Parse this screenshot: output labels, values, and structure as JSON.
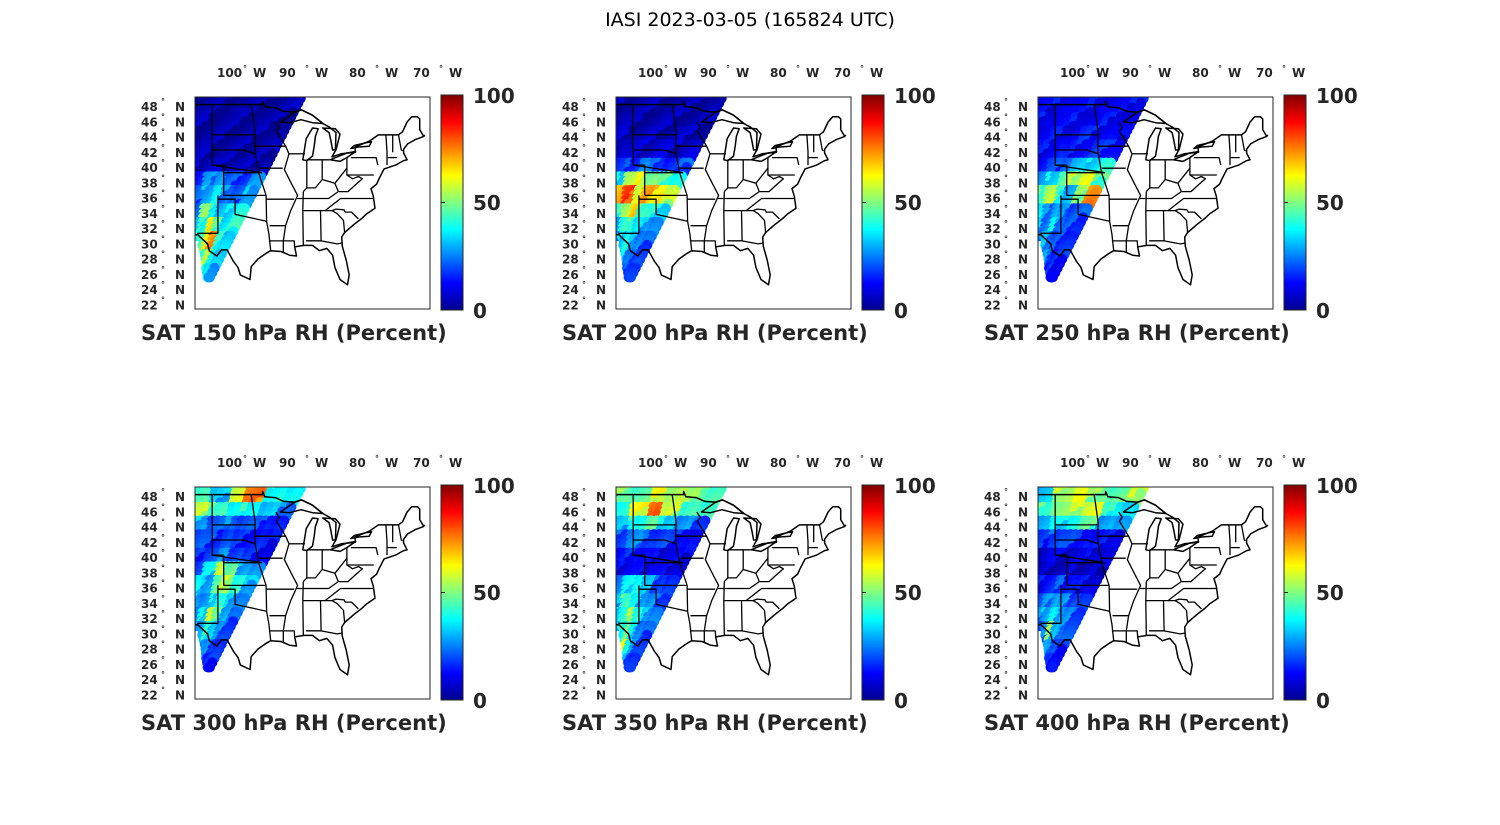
{
  "figure_title": "IASI 2023-03-05 (165824 UTC)",
  "colorscale": {
    "name": "jet",
    "stops": [
      "#00008f",
      "#0000ff",
      "#0080ff",
      "#00ffff",
      "#80ff80",
      "#ffff00",
      "#ff8000",
      "#ff0000",
      "#800000"
    ]
  },
  "map_colors": {
    "background": "#ffffff",
    "border": "#000000"
  },
  "chart_data": [
    {
      "type": "heatmap",
      "title": "SAT 150 hPa RH (Percent)",
      "lon_ticks": [
        "100",
        "90",
        "80",
        "70"
      ],
      "lon_suffix": "W",
      "lat_ticks": [
        "48",
        "46",
        "44",
        "42",
        "40",
        "38",
        "36",
        "34",
        "32",
        "30",
        "28",
        "26",
        "24",
        "22"
      ],
      "lat_suffix": "N",
      "colorbar": {
        "min": 0,
        "max": 100,
        "ticks": [
          "100",
          "50",
          "0"
        ]
      },
      "swath_rh": [
        [
          2,
          2,
          3,
          2,
          2,
          3
        ],
        [
          3,
          2,
          2,
          3,
          2,
          3
        ],
        [
          3,
          3,
          2,
          2,
          3,
          2
        ],
        [
          4,
          3,
          3,
          3,
          3,
          3
        ],
        [
          5,
          6,
          4,
          5,
          4,
          5
        ],
        [
          15,
          25,
          30,
          20,
          18,
          25
        ],
        [
          20,
          30,
          35,
          25,
          20,
          30
        ],
        [
          25,
          50,
          40,
          30,
          35,
          40
        ],
        [
          30,
          40,
          65,
          45,
          35,
          40
        ],
        [
          35,
          45,
          60,
          75,
          40,
          35
        ],
        [
          40,
          50,
          45,
          55,
          40,
          30
        ],
        [
          35,
          40,
          45,
          40,
          35,
          30
        ]
      ]
    },
    {
      "type": "heatmap",
      "title": "SAT 200 hPa RH (Percent)",
      "lon_ticks": [
        "100",
        "90",
        "80",
        "70"
      ],
      "lon_suffix": "W",
      "lat_ticks": [
        "48",
        "46",
        "44",
        "42",
        "40",
        "38",
        "36",
        "34",
        "32",
        "30",
        "28",
        "26",
        "24",
        "22"
      ],
      "lat_suffix": "N",
      "colorbar": {
        "min": 0,
        "max": 100,
        "ticks": [
          "100",
          "50",
          "0"
        ]
      },
      "swath_rh": [
        [
          3,
          3,
          4,
          3,
          3,
          4
        ],
        [
          4,
          3,
          3,
          4,
          3,
          4
        ],
        [
          5,
          4,
          5,
          4,
          5,
          4
        ],
        [
          8,
          6,
          7,
          8,
          6,
          7
        ],
        [
          15,
          18,
          25,
          20,
          15,
          20
        ],
        [
          35,
          55,
          60,
          50,
          45,
          40
        ],
        [
          70,
          80,
          60,
          70,
          65,
          55
        ],
        [
          40,
          55,
          65,
          45,
          40,
          35
        ],
        [
          30,
          40,
          45,
          35,
          30,
          25
        ],
        [
          25,
          35,
          40,
          30,
          25,
          20
        ],
        [
          20,
          30,
          35,
          25,
          20,
          20
        ],
        [
          20,
          25,
          25,
          20,
          20,
          15
        ]
      ]
    },
    {
      "type": "heatmap",
      "title": "SAT 250 hPa RH (Percent)",
      "lon_ticks": [
        "100",
        "90",
        "80",
        "70"
      ],
      "lon_suffix": "W",
      "lat_ticks": [
        "48",
        "46",
        "44",
        "42",
        "40",
        "38",
        "36",
        "34",
        "32",
        "30",
        "28",
        "26",
        "24",
        "22"
      ],
      "lat_suffix": "N",
      "colorbar": {
        "min": 0,
        "max": 100,
        "ticks": [
          "100",
          "50",
          "0"
        ]
      },
      "swath_rh": [
        [
          10,
          12,
          10,
          12,
          10,
          12
        ],
        [
          12,
          10,
          12,
          10,
          12,
          10
        ],
        [
          10,
          12,
          10,
          14,
          12,
          10
        ],
        [
          12,
          14,
          12,
          14,
          16,
          14
        ],
        [
          15,
          18,
          25,
          30,
          35,
          40
        ],
        [
          25,
          35,
          45,
          55,
          60,
          45
        ],
        [
          45,
          55,
          40,
          30,
          50,
          75
        ],
        [
          35,
          25,
          30,
          25,
          20,
          20
        ],
        [
          30,
          25,
          35,
          25,
          20,
          18
        ],
        [
          25,
          30,
          25,
          20,
          18,
          15
        ],
        [
          20,
          25,
          30,
          20,
          15,
          15
        ],
        [
          15,
          20,
          20,
          15,
          15,
          12
        ]
      ]
    },
    {
      "type": "heatmap",
      "title": "SAT 300 hPa RH (Percent)",
      "lon_ticks": [
        "100",
        "90",
        "80",
        "70"
      ],
      "lon_suffix": "W",
      "lat_ticks": [
        "48",
        "46",
        "44",
        "42",
        "40",
        "38",
        "36",
        "34",
        "32",
        "30",
        "28",
        "26",
        "24",
        "22"
      ],
      "lat_suffix": "N",
      "colorbar": {
        "min": 0,
        "max": 100,
        "ticks": [
          "100",
          "50",
          "0"
        ]
      },
      "swath_rh": [
        [
          45,
          30,
          60,
          75,
          40,
          35
        ],
        [
          55,
          45,
          35,
          40,
          30,
          25
        ],
        [
          30,
          20,
          25,
          20,
          18,
          15
        ],
        [
          20,
          18,
          20,
          15,
          15,
          12
        ],
        [
          15,
          20,
          25,
          20,
          15,
          12
        ],
        [
          20,
          35,
          60,
          45,
          30,
          25
        ],
        [
          35,
          30,
          45,
          55,
          40,
          30
        ],
        [
          30,
          25,
          35,
          40,
          30,
          25
        ],
        [
          25,
          35,
          60,
          45,
          30,
          20
        ],
        [
          25,
          30,
          40,
          35,
          25,
          20
        ],
        [
          20,
          25,
          30,
          25,
          20,
          15
        ],
        [
          20,
          25,
          20,
          20,
          15,
          15
        ]
      ]
    },
    {
      "type": "heatmap",
      "title": "SAT 350 hPa RH (Percent)",
      "lon_ticks": [
        "100",
        "90",
        "80",
        "70"
      ],
      "lon_suffix": "W",
      "lat_ticks": [
        "48",
        "46",
        "44",
        "42",
        "40",
        "38",
        "36",
        "34",
        "32",
        "30",
        "28",
        "26",
        "24",
        "22"
      ],
      "lat_suffix": "N",
      "colorbar": {
        "min": 0,
        "max": 100,
        "ticks": [
          "100",
          "50",
          "0"
        ]
      },
      "swath_rh": [
        [
          50,
          45,
          60,
          55,
          50,
          45
        ],
        [
          40,
          60,
          80,
          55,
          45,
          40
        ],
        [
          30,
          40,
          45,
          35,
          25,
          20
        ],
        [
          20,
          25,
          20,
          18,
          15,
          12
        ],
        [
          12,
          15,
          12,
          10,
          10,
          10
        ],
        [
          10,
          12,
          10,
          12,
          10,
          10
        ],
        [
          25,
          35,
          40,
          30,
          20,
          15
        ],
        [
          30,
          45,
          35,
          30,
          25,
          20
        ],
        [
          35,
          40,
          55,
          40,
          30,
          25
        ],
        [
          30,
          40,
          50,
          35,
          25,
          20
        ],
        [
          25,
          35,
          60,
          40,
          25,
          20
        ],
        [
          20,
          30,
          55,
          30,
          20,
          15
        ]
      ]
    },
    {
      "type": "heatmap",
      "title": "SAT 400 hPa RH (Percent)",
      "lon_ticks": [
        "100",
        "90",
        "80",
        "70"
      ],
      "lon_suffix": "W",
      "lat_ticks": [
        "48",
        "46",
        "44",
        "42",
        "40",
        "38",
        "36",
        "34",
        "32",
        "30",
        "28",
        "26",
        "24",
        "22"
      ],
      "lat_suffix": "N",
      "colorbar": {
        "min": 0,
        "max": 100,
        "ticks": [
          "100",
          "50",
          "0"
        ]
      },
      "swath_rh": [
        [
          30,
          55,
          60,
          50,
          45,
          55
        ],
        [
          45,
          50,
          55,
          60,
          40,
          35
        ],
        [
          30,
          35,
          40,
          45,
          30,
          25
        ],
        [
          15,
          20,
          18,
          15,
          12,
          12
        ],
        [
          8,
          10,
          8,
          8,
          10,
          8
        ],
        [
          5,
          6,
          5,
          6,
          5,
          6
        ],
        [
          12,
          15,
          20,
          15,
          12,
          10
        ],
        [
          20,
          25,
          30,
          25,
          20,
          15
        ],
        [
          25,
          30,
          35,
          30,
          25,
          20
        ],
        [
          20,
          25,
          55,
          30,
          25,
          20
        ],
        [
          20,
          25,
          30,
          25,
          20,
          15
        ],
        [
          15,
          20,
          25,
          20,
          15,
          15
        ]
      ]
    }
  ]
}
